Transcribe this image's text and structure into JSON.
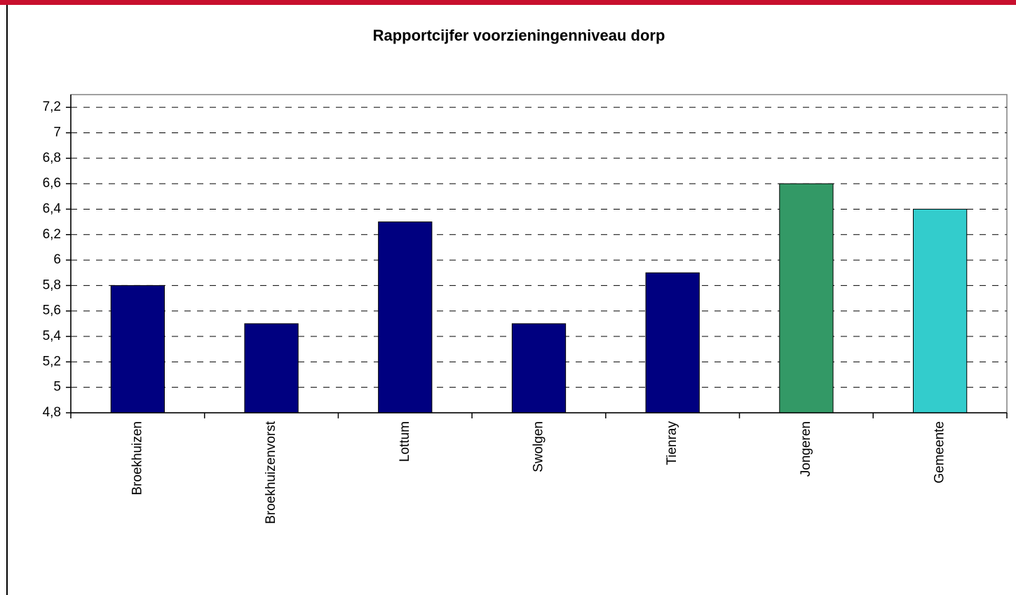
{
  "chart_data": {
    "type": "bar",
    "title": "Rapportcijfer voorzieningenniveau dorp",
    "categories": [
      "Broekhuizen",
      "Broekhuizenvorst",
      "Lottum",
      "Swolgen",
      "Tienray",
      "Jongeren",
      "Gemeente"
    ],
    "values": [
      5.8,
      5.5,
      6.3,
      5.5,
      5.9,
      6.6,
      6.4
    ],
    "colors": [
      "#000080",
      "#000080",
      "#000080",
      "#000080",
      "#000080",
      "#339966",
      "#33cccc"
    ],
    "ylim": [
      4.8,
      7.3
    ],
    "yticks": [
      {
        "value": 4.8,
        "label": "4,8"
      },
      5,
      {
        "value": 5.2,
        "label": "5,2"
      },
      {
        "value": 5.4,
        "label": "5,4"
      },
      {
        "value": 5.6,
        "label": "5,6"
      },
      {
        "value": 5.8,
        "label": "5,8"
      },
      6,
      {
        "value": 6.2,
        "label": "6,2"
      },
      {
        "value": 6.4,
        "label": "6,4"
      },
      {
        "value": 6.6,
        "label": "6,6"
      },
      {
        "value": 6.8,
        "label": "6,8"
      },
      7,
      {
        "value": 7.2,
        "label": "7,2"
      }
    ],
    "grid": true
  }
}
